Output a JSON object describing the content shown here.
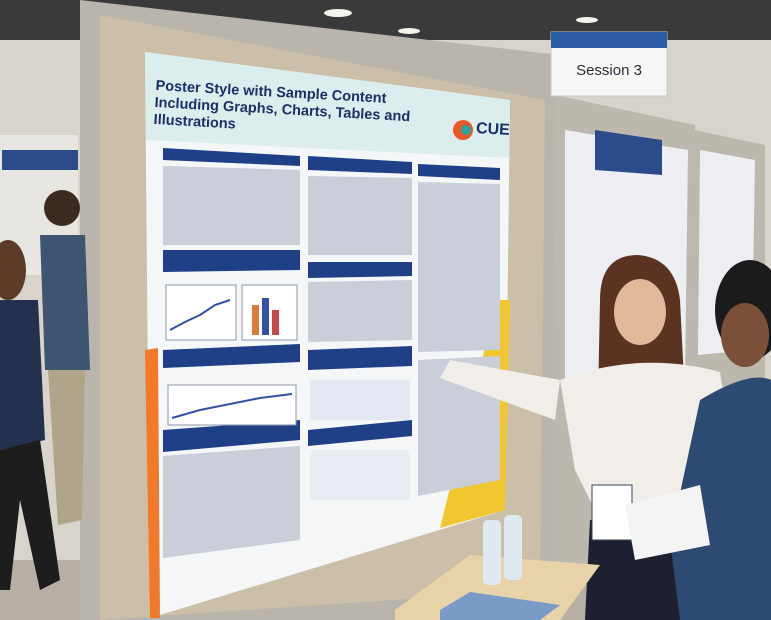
{
  "sign": {
    "text": "Session 3"
  },
  "poster": {
    "title": "Poster Style with Sample Content Including Graphs, Charts, Tables and Illustrations",
    "logo": "CUE"
  }
}
